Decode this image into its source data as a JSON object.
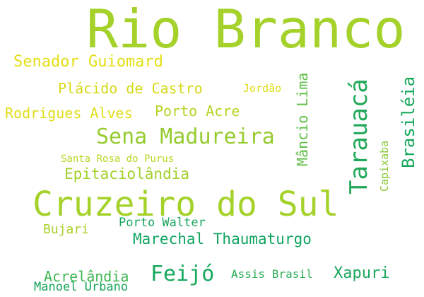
{
  "words": {
    "rio_branco": {
      "text": "Rio Branco",
      "color": "#a5d22a"
    },
    "cruzeiro_do_sul": {
      "text": "Cruzeiro do Sul",
      "color": "#a5d22a"
    },
    "sena_madureira": {
      "text": "Sena Madureira",
      "color": "#97cc31"
    },
    "tarauaca": {
      "text": "Tarauacá",
      "color": "#22a85a"
    },
    "feijo": {
      "text": "Feijó",
      "color": "#16a95e"
    },
    "brasileia": {
      "text": "Brasiléia",
      "color": "#17a85c"
    },
    "senador_guiomard": {
      "text": "Senador Guiomard",
      "color": "#e3df15"
    },
    "placido_de_castro": {
      "text": "Plácido de Castro",
      "color": "#d6d918"
    },
    "rodrigues_alves": {
      "text": "Rodrigues Alves",
      "color": "#e0dd17"
    },
    "porto_acre": {
      "text": "Porto Acre",
      "color": "#b3d523"
    },
    "mancio_lima": {
      "text": "Mâncio Lima",
      "color": "#5fbf45"
    },
    "epitaciolandia": {
      "text": "Epitaciolândia",
      "color": "#a2d12b"
    },
    "marechal_thaumaturgo": {
      "text": "Marechal Thaumaturgo",
      "color": "#10a460"
    },
    "xapuri": {
      "text": "Xapuri",
      "color": "#1aa65c"
    },
    "acrelandia": {
      "text": "Acrelândia",
      "color": "#3cb650"
    },
    "jordao": {
      "text": "Jordão",
      "color": "#e0dd19"
    },
    "bujari": {
      "text": "Bujari",
      "color": "#a8d227"
    },
    "porto_walter": {
      "text": "Porto Walter",
      "color": "#1aa55e"
    },
    "assis_brasil": {
      "text": "Assis Brasil",
      "color": "#2aae56"
    },
    "capixaba": {
      "text": "Capixaba",
      "color": "#88c836"
    },
    "santa_rosa_do_purus": {
      "text": "Santa Rosa do Purus",
      "color": "#b9d621"
    },
    "manoel_urbano": {
      "text": "Manoel Urbano",
      "color": "#1aa55c"
    }
  }
}
